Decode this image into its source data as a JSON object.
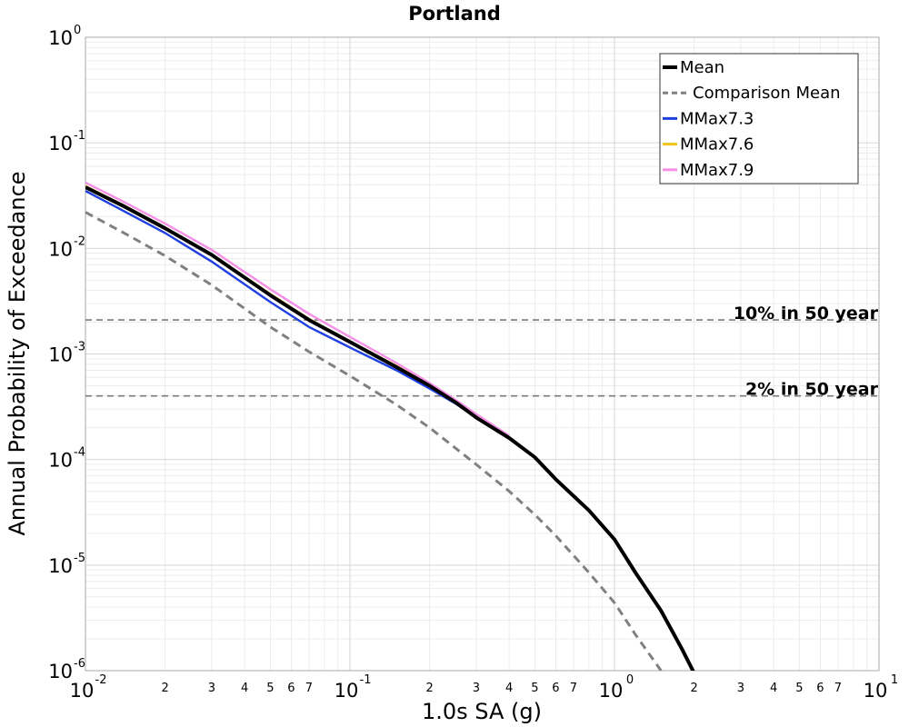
{
  "chart_data": {
    "type": "line",
    "title": "Portland",
    "xlabel": "1.0s SA (g)",
    "ylabel": "Annual Probability of Exceedance",
    "x_scale": "log",
    "y_scale": "log",
    "xlim": [
      0.01,
      10
    ],
    "ylim": [
      1e-06,
      1
    ],
    "grid": true,
    "legend_position": "top-right",
    "x_major_ticks": [
      {
        "value": 0.01,
        "base": "10",
        "exp": "-2"
      },
      {
        "value": 0.1,
        "base": "10",
        "exp": "-1"
      },
      {
        "value": 1,
        "base": "10",
        "exp": "0"
      },
      {
        "value": 10,
        "base": "10",
        "exp": "1"
      }
    ],
    "x_minor_labels": [
      "2",
      "3",
      "4",
      "5",
      "6",
      "7"
    ],
    "y_major_ticks": [
      {
        "value": 1,
        "base": "10",
        "exp": "0"
      },
      {
        "value": 0.1,
        "base": "10",
        "exp": "-1"
      },
      {
        "value": 0.01,
        "base": "10",
        "exp": "-2"
      },
      {
        "value": 0.001,
        "base": "10",
        "exp": "-3"
      },
      {
        "value": 0.0001,
        "base": "10",
        "exp": "-4"
      },
      {
        "value": 1e-05,
        "base": "10",
        "exp": "-5"
      },
      {
        "value": 1e-06,
        "base": "10",
        "exp": "-6"
      }
    ],
    "reference_lines": [
      {
        "label": "10% in 50 year",
        "y": 0.0021
      },
      {
        "label": "2% in 50 year",
        "y": 0.0004
      }
    ],
    "series": [
      {
        "name": "Mean",
        "color": "#000000",
        "style": "solid",
        "x": [
          0.01,
          0.014,
          0.02,
          0.03,
          0.05,
          0.07,
          0.1,
          0.15,
          0.2,
          0.25,
          0.3,
          0.4,
          0.5,
          0.6,
          0.8,
          1.0,
          1.2,
          1.5,
          1.8,
          2.0,
          2.2
        ],
        "y": [
          0.038,
          0.025,
          0.0155,
          0.0087,
          0.0036,
          0.0021,
          0.0013,
          0.00075,
          0.0005,
          0.00035,
          0.00025,
          0.00016,
          0.000105,
          6.5e-05,
          3.3e-05,
          1.75e-05,
          8.5e-06,
          3.7e-06,
          1.6e-06,
          9.5e-07,
          6e-07
        ]
      },
      {
        "name": "Comparison Mean",
        "color": "#808080",
        "style": "dashed",
        "x": [
          0.01,
          0.014,
          0.02,
          0.03,
          0.05,
          0.07,
          0.1,
          0.15,
          0.2,
          0.3,
          0.4,
          0.5,
          0.6,
          0.8,
          1.0,
          1.2,
          1.5
        ],
        "y": [
          0.022,
          0.014,
          0.0085,
          0.0045,
          0.0018,
          0.00105,
          0.00062,
          0.00033,
          0.0002,
          9e-05,
          5e-05,
          3e-05,
          1.9e-05,
          8.5e-06,
          4.4e-06,
          2.2e-06,
          1e-06
        ]
      },
      {
        "name": "MMax7.3",
        "color": "#1f3fe0",
        "style": "solid",
        "x": [
          0.01,
          0.014,
          0.02,
          0.03,
          0.05,
          0.07,
          0.1,
          0.15,
          0.2,
          0.25,
          0.3,
          0.4
        ],
        "y": [
          0.035,
          0.0225,
          0.014,
          0.0075,
          0.0031,
          0.0018,
          0.00115,
          0.0007,
          0.00047,
          0.00034,
          0.00025,
          0.00016
        ]
      },
      {
        "name": "MMax7.6",
        "color": "#f2c218",
        "style": "solid",
        "x": [
          0.01,
          0.014,
          0.02,
          0.03,
          0.05,
          0.07,
          0.1,
          0.15,
          0.2,
          0.25,
          0.3,
          0.4
        ],
        "y": [
          0.039,
          0.0255,
          0.0158,
          0.0088,
          0.0037,
          0.00215,
          0.00132,
          0.00077,
          0.00051,
          0.00036,
          0.00026,
          0.000163
        ]
      },
      {
        "name": "MMax7.9",
        "color": "#f590e6",
        "style": "solid",
        "x": [
          0.01,
          0.014,
          0.02,
          0.03,
          0.05,
          0.07,
          0.1,
          0.15,
          0.2,
          0.25,
          0.3,
          0.4
        ],
        "y": [
          0.042,
          0.0275,
          0.0172,
          0.0097,
          0.0041,
          0.0024,
          0.00145,
          0.00082,
          0.00053,
          0.00037,
          0.00027,
          0.000168
        ]
      }
    ]
  }
}
